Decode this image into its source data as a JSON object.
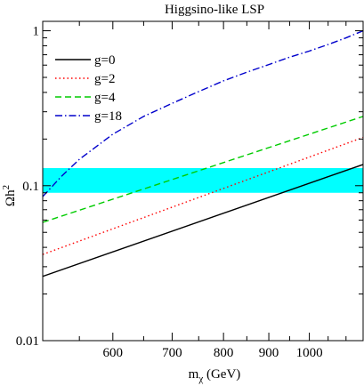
{
  "chart_data": {
    "type": "line",
    "title": "Higgsino-like LSP",
    "xlabel": {
      "main": "m",
      "sub": "χ",
      "unit": " (GeV)"
    },
    "ylabel": {
      "main": "Ωh",
      "sup": "2"
    },
    "x_scale": "log",
    "y_scale": "log",
    "xlim": [
      500,
      1150
    ],
    "ylim": [
      0.01,
      1.15
    ],
    "x_ticks": [
      {
        "value": 600,
        "label": "600"
      },
      {
        "value": 700,
        "label": "700"
      },
      {
        "value": 800,
        "label": "800"
      },
      {
        "value": 900,
        "label": "900"
      },
      {
        "value": 1000,
        "label": "1000"
      }
    ],
    "y_ticks": [
      {
        "value": 0.01,
        "label": "0.01"
      },
      {
        "value": 0.1,
        "label": "0.1"
      },
      {
        "value": 1,
        "label": "1"
      }
    ],
    "band": {
      "y_min": 0.09,
      "y_max": 0.13,
      "color": "#00ffff"
    },
    "legend_position": "top-left",
    "grid": false,
    "series": [
      {
        "name": "g=0",
        "color": "#000000",
        "dash": "solid",
        "x": [
          500,
          1150
        ],
        "y": [
          0.026,
          0.137
        ]
      },
      {
        "name": "g=2",
        "color": "#ff0000",
        "dash": "dotted",
        "x": [
          500,
          1150
        ],
        "y": [
          0.036,
          0.205
        ]
      },
      {
        "name": "g=4",
        "color": "#00cc00",
        "dash": "dashed",
        "x": [
          500,
          1150
        ],
        "y": [
          0.058,
          0.28
        ]
      },
      {
        "name": "g=18",
        "color": "#0000cc",
        "dash": "dashdot",
        "x": [
          500,
          525,
          550,
          600,
          650,
          700,
          750,
          800,
          850,
          900,
          950,
          1000,
          1050,
          1100,
          1150
        ],
        "y": [
          0.085,
          0.115,
          0.148,
          0.215,
          0.28,
          0.34,
          0.405,
          0.475,
          0.54,
          0.605,
          0.675,
          0.74,
          0.815,
          0.9,
          1.0
        ]
      }
    ]
  }
}
